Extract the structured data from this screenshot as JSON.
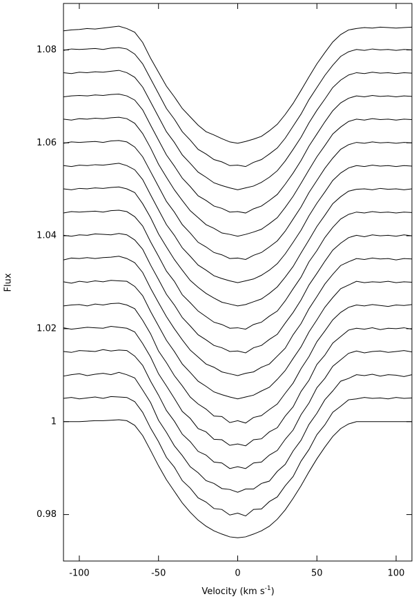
{
  "chart_data": {
    "type": "line",
    "color": "#000000",
    "x_label": [
      "Velocity (km s",
      "-1",
      ")"
    ],
    "y_label": "Flux",
    "xlim": [
      -110,
      110
    ],
    "ylim": [
      0.97,
      1.09
    ],
    "xticks": [
      -100,
      -50,
      0,
      50,
      100
    ],
    "yticks": [
      0.98,
      1,
      1.02,
      1.04,
      1.06,
      1.08
    ],
    "x": [
      -110,
      -105,
      -100,
      -95,
      -90,
      -85,
      -80,
      -75,
      -70,
      -65,
      -60,
      -55,
      -50,
      -45,
      -40,
      -35,
      -30,
      -25,
      -20,
      -15,
      -10,
      -5,
      0,
      5,
      10,
      15,
      20,
      25,
      30,
      35,
      40,
      45,
      50,
      55,
      60,
      65,
      70,
      75,
      80,
      85,
      90,
      95,
      100,
      105,
      110
    ],
    "series": [
      {
        "values": [
          1.0,
          1.0,
          1.0,
          1.0001,
          1.0002,
          1.0002,
          1.0003,
          1.0004,
          1.0002,
          0.9992,
          0.997,
          0.9938,
          0.9905,
          0.9875,
          0.985,
          0.9825,
          0.9805,
          0.9788,
          0.9775,
          0.9765,
          0.9758,
          0.9752,
          0.975,
          0.9752,
          0.9758,
          0.9765,
          0.9775,
          0.979,
          0.981,
          0.9835,
          0.9862,
          0.9892,
          0.992,
          0.9945,
          0.9968,
          0.9985,
          0.9995,
          1.0,
          1.0,
          1.0,
          1.0,
          1.0,
          1.0,
          1.0,
          1.0
        ]
      },
      {
        "values": [
          1.005,
          1.0052,
          1.0049,
          1.0051,
          1.0053,
          1.005,
          1.0054,
          1.0053,
          1.0052,
          1.0043,
          1.002,
          0.9986,
          0.9957,
          0.9923,
          0.9902,
          0.9873,
          0.9857,
          0.9836,
          0.9827,
          0.9813,
          0.9811,
          0.9799,
          0.9803,
          0.9797,
          0.9811,
          0.9812,
          0.9828,
          0.9838,
          0.9862,
          0.9882,
          0.9915,
          0.994,
          0.9972,
          0.9993,
          1.002,
          1.0033,
          1.0047,
          1.0049,
          1.0052,
          1.005,
          1.0051,
          1.0049,
          1.0052,
          1.005,
          1.0051
        ]
      },
      {
        "values": [
          1.0098,
          1.0101,
          1.0103,
          1.0099,
          1.0102,
          1.0104,
          1.0101,
          1.0106,
          1.0101,
          1.0094,
          1.0068,
          1.0041,
          1.0003,
          0.9977,
          0.9948,
          0.9927,
          0.9903,
          0.989,
          0.9873,
          0.9867,
          0.9856,
          0.9854,
          0.9848,
          0.9855,
          0.9855,
          0.9867,
          0.9872,
          0.9893,
          0.9908,
          0.9937,
          0.996,
          0.9994,
          1.0018,
          1.0047,
          1.0066,
          1.0087,
          1.0093,
          1.0101,
          1.0099,
          1.0102,
          1.0098,
          1.0101,
          1.01,
          1.0097,
          1.0101
        ]
      },
      {
        "values": [
          1.0151,
          1.0149,
          1.0153,
          1.0152,
          1.0151,
          1.0155,
          1.0152,
          1.0154,
          1.0153,
          1.0141,
          1.0121,
          1.0087,
          1.0057,
          1.0024,
          1.0001,
          0.9973,
          0.9957,
          0.9936,
          0.9928,
          0.9913,
          0.9911,
          0.9899,
          0.9903,
          0.9899,
          0.9911,
          0.9913,
          0.9928,
          0.9938,
          0.9962,
          0.9982,
          1.0015,
          1.004,
          1.0073,
          1.0093,
          1.0119,
          1.0133,
          1.0147,
          1.0152,
          1.0148,
          1.0151,
          1.0152,
          1.0149,
          1.0151,
          1.0153,
          1.015
        ]
      },
      {
        "values": [
          1.0202,
          1.0199,
          1.0201,
          1.0203,
          1.0202,
          1.0201,
          1.0205,
          1.0203,
          1.0201,
          1.0193,
          1.0168,
          1.0139,
          1.0103,
          1.0077,
          1.005,
          1.0022,
          1.0007,
          0.9985,
          0.9978,
          0.9962,
          0.9961,
          0.9949,
          0.9952,
          0.9948,
          0.9961,
          0.9963,
          0.9978,
          0.9987,
          1.0012,
          1.0032,
          1.0065,
          1.0089,
          1.0123,
          1.0143,
          1.0169,
          1.0183,
          1.0197,
          1.0201,
          1.0199,
          1.0202,
          1.0198,
          1.0201,
          1.02,
          1.0202,
          1.0199
        ]
      },
      {
        "values": [
          1.0249,
          1.0251,
          1.0252,
          1.0249,
          1.0253,
          1.0251,
          1.0254,
          1.0255,
          1.0251,
          1.0243,
          1.0218,
          1.0189,
          1.0152,
          1.0127,
          1.0099,
          1.0077,
          1.0053,
          1.0038,
          1.0027,
          1.0012,
          1.0011,
          0.9998,
          1.0002,
          0.9997,
          1.0009,
          1.0013,
          1.0026,
          1.0038,
          1.0061,
          1.0083,
          1.0114,
          1.014,
          1.0172,
          1.0195,
          1.0219,
          1.0235,
          1.0246,
          1.0251,
          1.0249,
          1.0252,
          1.025,
          1.0248,
          1.0251,
          1.025,
          1.0252
        ]
      },
      {
        "values": [
          1.0301,
          1.0298,
          1.0302,
          1.03,
          1.0303,
          1.0301,
          1.0304,
          1.0303,
          1.0302,
          1.0291,
          1.0271,
          1.0237,
          1.0206,
          1.0175,
          1.0151,
          1.0124,
          1.0106,
          1.0087,
          1.0076,
          1.0064,
          1.0058,
          1.0053,
          1.0049,
          1.0053,
          1.0057,
          1.0066,
          1.0074,
          1.0091,
          1.011,
          1.0136,
          1.0161,
          1.0193,
          1.0219,
          1.0246,
          1.0267,
          1.0286,
          1.0294,
          1.0302,
          1.0299,
          1.0301,
          1.03,
          1.0302,
          1.0299,
          1.0301,
          1.03
        ]
      },
      {
        "values": [
          1.0348,
          1.0352,
          1.0351,
          1.0353,
          1.0351,
          1.0353,
          1.0354,
          1.0356,
          1.0351,
          1.0342,
          1.0321,
          1.0287,
          1.0256,
          1.0226,
          1.02,
          1.0176,
          1.0154,
          1.0139,
          1.0124,
          1.0117,
          1.0107,
          1.0103,
          1.0099,
          1.0104,
          1.0107,
          1.0117,
          1.0124,
          1.0141,
          1.0158,
          1.0187,
          1.0211,
          1.0243,
          1.0269,
          1.0296,
          1.0317,
          1.0336,
          1.0344,
          1.0351,
          1.0349,
          1.0352,
          1.035,
          1.0351,
          1.0348,
          1.0351,
          1.035
        ]
      },
      {
        "values": [
          1.0401,
          1.0399,
          1.0402,
          1.0401,
          1.0404,
          1.0403,
          1.0402,
          1.0405,
          1.0402,
          1.0391,
          1.0371,
          1.0337,
          1.0306,
          1.0274,
          1.0251,
          1.0224,
          1.0206,
          1.0187,
          1.0176,
          1.0164,
          1.0159,
          1.0151,
          1.0152,
          1.0148,
          1.0159,
          1.0164,
          1.0177,
          1.0188,
          1.0212,
          1.0235,
          1.0262,
          1.0294,
          1.0319,
          1.0345,
          1.0369,
          1.0384,
          1.0396,
          1.0401,
          1.0398,
          1.0402,
          1.04,
          1.0401,
          1.0399,
          1.0402,
          1.04
        ]
      },
      {
        "values": [
          1.0449,
          1.0452,
          1.0451,
          1.0452,
          1.0453,
          1.0451,
          1.0454,
          1.0455,
          1.0452,
          1.0441,
          1.0421,
          1.0387,
          1.0356,
          1.0324,
          1.0302,
          1.0273,
          1.0256,
          1.0238,
          1.0226,
          1.0214,
          1.0209,
          1.0201,
          1.0202,
          1.0199,
          1.0209,
          1.0214,
          1.0227,
          1.0238,
          1.026,
          1.0286,
          1.0311,
          1.0344,
          1.0368,
          1.0396,
          1.0418,
          1.0436,
          1.0446,
          1.0451,
          1.0449,
          1.0452,
          1.045,
          1.0451,
          1.0449,
          1.0451,
          1.045
        ]
      },
      {
        "values": [
          1.0501,
          1.0499,
          1.0502,
          1.0501,
          1.0503,
          1.0502,
          1.0504,
          1.0505,
          1.0501,
          1.0493,
          1.0469,
          1.0439,
          1.0404,
          1.0376,
          1.0349,
          1.0326,
          1.0304,
          1.0289,
          1.0276,
          1.0266,
          1.0257,
          1.0253,
          1.0249,
          1.0252,
          1.0258,
          1.0264,
          1.0276,
          1.029,
          1.0311,
          1.0334,
          1.0363,
          1.0391,
          1.042,
          1.0444,
          1.0469,
          1.0484,
          1.0496,
          1.05,
          1.0501,
          1.0499,
          1.0502,
          1.05,
          1.0501,
          1.0499,
          1.0501
        ]
      },
      {
        "values": [
          1.0551,
          1.0549,
          1.0552,
          1.0551,
          1.0553,
          1.0552,
          1.0554,
          1.0556,
          1.0551,
          1.0542,
          1.0521,
          1.0488,
          1.0456,
          1.0424,
          1.0401,
          1.0374,
          1.0356,
          1.0337,
          1.0326,
          1.0314,
          1.0308,
          1.0303,
          1.0299,
          1.0303,
          1.0307,
          1.0315,
          1.0326,
          1.034,
          1.0361,
          1.0386,
          1.0412,
          1.0443,
          1.047,
          1.0494,
          1.0519,
          1.0535,
          1.0546,
          1.0551,
          1.0549,
          1.0552,
          1.055,
          1.0551,
          1.0549,
          1.0551,
          1.055
        ]
      },
      {
        "values": [
          1.0599,
          1.0602,
          1.0601,
          1.0602,
          1.0603,
          1.0601,
          1.0604,
          1.0605,
          1.0602,
          1.0591,
          1.057,
          1.0538,
          1.0506,
          1.0474,
          1.0451,
          1.0424,
          1.0406,
          1.0386,
          1.0376,
          1.0364,
          1.0359,
          1.0351,
          1.0352,
          1.0349,
          1.0358,
          1.0364,
          1.0376,
          1.0389,
          1.041,
          1.0436,
          1.0462,
          1.0493,
          1.0519,
          1.0545,
          1.0567,
          1.0586,
          1.0596,
          1.0601,
          1.0599,
          1.0602,
          1.06,
          1.0601,
          1.0599,
          1.0601,
          1.06
        ]
      },
      {
        "values": [
          1.0651,
          1.0649,
          1.0652,
          1.0651,
          1.0653,
          1.0652,
          1.0654,
          1.0655,
          1.0652,
          1.0642,
          1.062,
          1.0589,
          1.0554,
          1.0526,
          1.0499,
          1.0476,
          1.0454,
          1.0439,
          1.0424,
          1.0416,
          1.0406,
          1.0403,
          1.0399,
          1.0403,
          1.0408,
          1.0414,
          1.0426,
          1.0439,
          1.0461,
          1.0485,
          1.0513,
          1.0542,
          1.057,
          1.0594,
          1.0619,
          1.0634,
          1.0646,
          1.0651,
          1.0649,
          1.0652,
          1.065,
          1.0651,
          1.0649,
          1.0651,
          1.065
        ]
      },
      {
        "values": [
          1.0699,
          1.0701,
          1.0702,
          1.0701,
          1.0703,
          1.0702,
          1.0704,
          1.0705,
          1.0701,
          1.0692,
          1.0671,
          1.0638,
          1.0606,
          1.0574,
          1.055,
          1.0524,
          1.0506,
          1.0486,
          1.0476,
          1.0464,
          1.0459,
          1.0451,
          1.0452,
          1.0449,
          1.0458,
          1.0464,
          1.0476,
          1.0489,
          1.0511,
          1.0535,
          1.0562,
          1.0593,
          1.0619,
          1.0645,
          1.0669,
          1.0686,
          1.0696,
          1.0701,
          1.0699,
          1.0702,
          1.07,
          1.0701,
          1.0699,
          1.0701,
          1.07
        ]
      },
      {
        "values": [
          1.0751,
          1.0749,
          1.0752,
          1.0751,
          1.0753,
          1.0752,
          1.0754,
          1.0756,
          1.0751,
          1.0741,
          1.072,
          1.0688,
          1.0656,
          1.0624,
          1.0601,
          1.0574,
          1.0556,
          1.0537,
          1.0526,
          1.0514,
          1.0508,
          1.0503,
          1.0499,
          1.0503,
          1.0507,
          1.0515,
          1.0526,
          1.054,
          1.0561,
          1.0586,
          1.0612,
          1.0643,
          1.067,
          1.0694,
          1.0719,
          1.0735,
          1.0746,
          1.0751,
          1.0749,
          1.0752,
          1.075,
          1.0751,
          1.0749,
          1.0751,
          1.075
        ]
      },
      {
        "values": [
          1.0799,
          1.0802,
          1.0801,
          1.0802,
          1.0803,
          1.0801,
          1.0804,
          1.0805,
          1.0802,
          1.0791,
          1.077,
          1.0738,
          1.0706,
          1.0674,
          1.0651,
          1.0624,
          1.0606,
          1.0586,
          1.0576,
          1.0564,
          1.0559,
          1.0551,
          1.0552,
          1.0549,
          1.0558,
          1.0564,
          1.0576,
          1.0589,
          1.061,
          1.0636,
          1.0662,
          1.0693,
          1.0719,
          1.0745,
          1.0767,
          1.0786,
          1.0796,
          1.0801,
          1.0799,
          1.0802,
          1.08,
          1.0801,
          1.0799,
          1.0801,
          1.08
        ]
      },
      {
        "values": [
          1.0841,
          1.0843,
          1.0844,
          1.0846,
          1.0845,
          1.0847,
          1.0849,
          1.0851,
          1.0846,
          1.0838,
          1.0816,
          1.0782,
          1.0752,
          1.0722,
          1.0699,
          1.0674,
          1.0656,
          1.0638,
          1.0624,
          1.0617,
          1.0609,
          1.0602,
          1.0599,
          1.0603,
          1.0608,
          1.0614,
          1.0626,
          1.064,
          1.0661,
          1.0685,
          1.0713,
          1.0742,
          1.077,
          1.0794,
          1.0817,
          1.0833,
          1.0843,
          1.0846,
          1.0848,
          1.0847,
          1.0849,
          1.0848,
          1.0847,
          1.0848,
          1.0849
        ]
      }
    ]
  }
}
